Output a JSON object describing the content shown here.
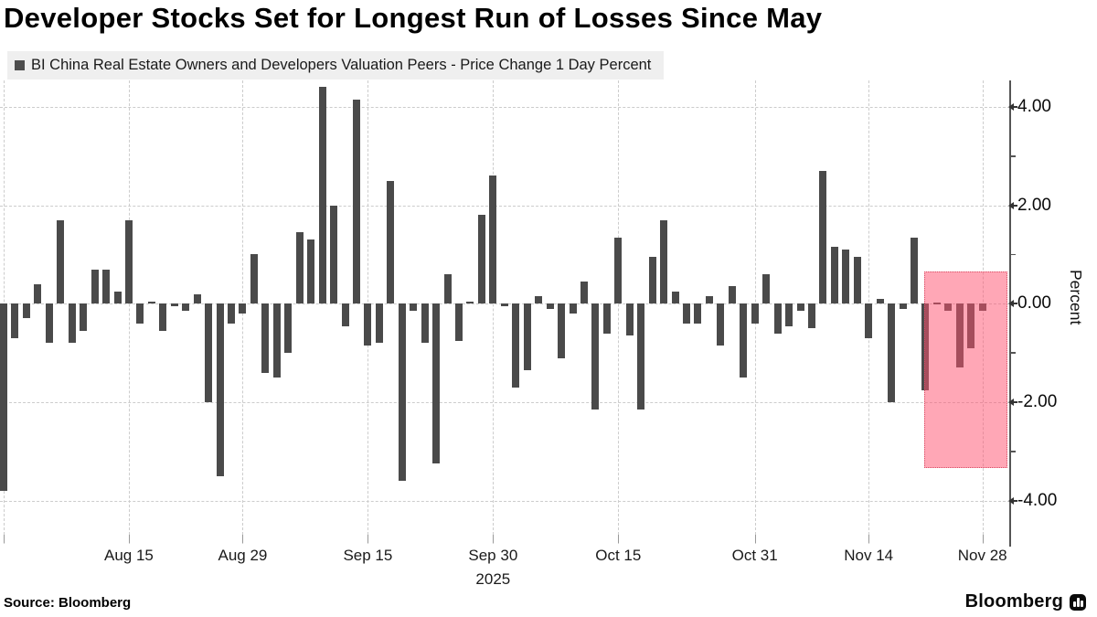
{
  "title": "Developer Stocks Set for Longest Run of Losses Since May",
  "legend": {
    "label": "BI China Real Estate Owners and Developers Valuation Peers - Price Change 1 Day Percent",
    "marker_color": "#4d4d4d"
  },
  "footer": {
    "source": "Source: Bloomberg",
    "brand": "Bloomberg"
  },
  "chart_data": {
    "type": "bar",
    "title": "Developer Stocks Set for Longest Run of Losses Since May",
    "series_name": "BI China Real Estate Owners and Developers Valuation Peers - Price Change 1 Day Percent",
    "ylabel": "Percent",
    "year_label": "2025",
    "ylim": [
      -4.7,
      4.55
    ],
    "y_major_ticks": [
      4,
      2,
      0,
      -2,
      -4
    ],
    "y_tick_labels": [
      "4.00",
      "2.00",
      "0.00",
      "-2.00",
      "-4.00"
    ],
    "y_minor_ticks": [
      3,
      1,
      -1,
      -3
    ],
    "grid": true,
    "legend_position": "top-left",
    "bar_color": "#4a4a4a",
    "grid_color": "#cccccc",
    "axis_color": "#555555",
    "x": [
      "Jul 31",
      "Aug 1",
      "Aug 4",
      "Aug 5",
      "Aug 6",
      "Aug 7",
      "Aug 8",
      "Aug 11",
      "Aug 12",
      "Aug 13",
      "Aug 14",
      "Aug 15",
      "Aug 18",
      "Aug 19",
      "Aug 20",
      "Aug 21",
      "Aug 22",
      "Aug 25",
      "Aug 26",
      "Aug 27",
      "Aug 28",
      "Aug 29",
      "Sep 1",
      "Sep 2",
      "Sep 3",
      "Sep 4",
      "Sep 5",
      "Sep 8",
      "Sep 9",
      "Sep 10",
      "Sep 11",
      "Sep 12",
      "Sep 15",
      "Sep 16",
      "Sep 17",
      "Sep 18",
      "Sep 19",
      "Sep 22",
      "Sep 23",
      "Sep 24",
      "Sep 25",
      "Sep 26",
      "Sep 29",
      "Sep 30",
      "Oct 1",
      "Oct 2",
      "Oct 3",
      "Oct 6",
      "Oct 7",
      "Oct 8",
      "Oct 9",
      "Oct 10",
      "Oct 13",
      "Oct 14",
      "Oct 15",
      "Oct 16",
      "Oct 17",
      "Oct 20",
      "Oct 21",
      "Oct 22",
      "Oct 23",
      "Oct 24",
      "Oct 27",
      "Oct 28",
      "Oct 29",
      "Oct 30",
      "Oct 31",
      "Nov 3",
      "Nov 4",
      "Nov 5",
      "Nov 6",
      "Nov 7",
      "Nov 10",
      "Nov 11",
      "Nov 12",
      "Nov 13",
      "Nov 14",
      "Nov 17",
      "Nov 18",
      "Nov 19",
      "Nov 20",
      "Nov 21",
      "Nov 24",
      "Nov 25",
      "Nov 26",
      "Nov 27",
      "Nov 28"
    ],
    "values": [
      -3.8,
      -0.7,
      -0.3,
      0.4,
      -0.8,
      1.7,
      -0.8,
      -0.55,
      0.7,
      0.7,
      0.25,
      1.7,
      -0.4,
      0.05,
      -0.55,
      -0.05,
      -0.15,
      0.2,
      -2.0,
      -3.5,
      -0.4,
      -0.2,
      1.0,
      -1.4,
      -1.5,
      -1.0,
      1.45,
      1.3,
      4.4,
      2.0,
      -0.45,
      4.15,
      -0.85,
      -0.8,
      2.5,
      -3.6,
      -0.15,
      -0.8,
      -3.25,
      0.6,
      -0.75,
      0.05,
      1.8,
      2.6,
      -0.05,
      -1.7,
      -1.35,
      0.15,
      -0.1,
      -1.1,
      -0.2,
      0.45,
      -2.15,
      -0.6,
      1.35,
      -0.65,
      -2.15,
      0.95,
      1.7,
      0.25,
      -0.4,
      -0.4,
      0.15,
      -0.85,
      0.35,
      -1.5,
      -0.4,
      0.6,
      -0.6,
      -0.45,
      -0.15,
      -0.5,
      2.7,
      1.15,
      1.1,
      0.95,
      -0.7,
      0.1,
      -2.0,
      -0.1,
      1.35,
      -1.75,
      0.0,
      -0.15,
      -1.3,
      -0.9,
      -0.15
    ],
    "x_axis_ticks": [
      {
        "index": 0,
        "label": ""
      },
      {
        "index": 11,
        "label": "Aug 15"
      },
      {
        "index": 21,
        "label": "Aug 29"
      },
      {
        "index": 32,
        "label": "Sep 15"
      },
      {
        "index": 43,
        "label": "Sep 30",
        "sub": "2025"
      },
      {
        "index": 54,
        "label": "Oct 15"
      },
      {
        "index": 66,
        "label": "Oct 31"
      },
      {
        "index": 76,
        "label": "Nov 14"
      },
      {
        "index": 86,
        "label": "Nov 28"
      }
    ],
    "highlight": {
      "from_date": "Nov 21",
      "to": "right-edge",
      "top_value": 0.65,
      "bottom_value": -3.3,
      "fill": "rgba(255,80,110,0.5)",
      "border": "#d94f66"
    }
  }
}
